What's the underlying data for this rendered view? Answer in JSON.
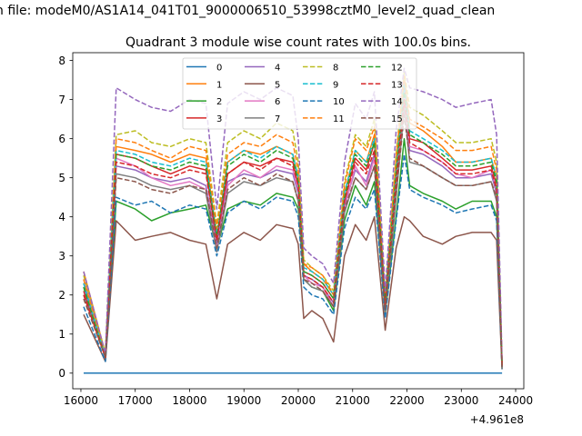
{
  "chart_data": {
    "type": "line",
    "suptitle": "n file: modeM0/AS1A14_041T01_9000006510_53998cztM0_level2_quad_clean",
    "title": "Quadrant 3 module wise count rates with 100.0s bins.",
    "xlabel": "",
    "ylabel": "",
    "x_offset_label": "+4.961e8",
    "xlim": [
      15850,
      24150
    ],
    "ylim": [
      -0.4,
      8.2
    ],
    "xticks": [
      16000,
      17000,
      18000,
      19000,
      20000,
      21000,
      22000,
      23000,
      24000
    ],
    "yticks": [
      0,
      1,
      2,
      3,
      4,
      5,
      6,
      7,
      8
    ],
    "grid": false,
    "legend_position": "upper-center",
    "legend_columns": 4,
    "x": [
      16050,
      16450,
      16650,
      17000,
      17300,
      17650,
      18000,
      18300,
      18500,
      18700,
      19000,
      19300,
      19600,
      19900,
      20000,
      20100,
      20250,
      20450,
      20650,
      20850,
      21050,
      21250,
      21400,
      21600,
      21800,
      21950,
      22050,
      22300,
      22650,
      22900,
      23200,
      23550,
      23650,
      23750
    ],
    "series": [
      {
        "name": "0",
        "color": "#1f77b4",
        "dash": "solid",
        "values": [
          0,
          0,
          0,
          0,
          0,
          0,
          0,
          0,
          0,
          0,
          0,
          0,
          0,
          0,
          0,
          0,
          0,
          0,
          0,
          0,
          0,
          0,
          0,
          0,
          0,
          0,
          0,
          0,
          0,
          0,
          0,
          0,
          0,
          0
        ]
      },
      {
        "name": "1",
        "color": "#ff7f0e",
        "dash": "solid",
        "values": [
          2.6,
          0.5,
          5.8,
          5.7,
          5.6,
          5.4,
          5.6,
          5.5,
          3.5,
          5.4,
          5.7,
          5.6,
          5.8,
          5.6,
          5.0,
          2.8,
          2.6,
          2.4,
          2.0,
          4.6,
          5.7,
          5.4,
          6.1,
          1.8,
          5.3,
          7.5,
          6.4,
          6.2,
          5.8,
          5.4,
          5.4,
          5.5,
          5.0,
          0.2
        ]
      },
      {
        "name": "2",
        "color": "#2ca02c",
        "dash": "solid",
        "values": [
          2.3,
          0.4,
          4.4,
          4.2,
          3.9,
          4.1,
          4.2,
          4.3,
          3.2,
          4.2,
          4.4,
          4.3,
          4.6,
          4.5,
          4.2,
          2.4,
          2.2,
          2.1,
          1.6,
          3.9,
          4.8,
          4.3,
          4.9,
          1.5,
          4.0,
          6.0,
          4.8,
          4.6,
          4.4,
          4.2,
          4.4,
          4.4,
          4.0,
          0.1
        ]
      },
      {
        "name": "3",
        "color": "#d62728",
        "dash": "solid",
        "values": [
          2.1,
          0.4,
          5.6,
          5.5,
          5.3,
          5.1,
          5.3,
          5.2,
          3.4,
          5.1,
          5.4,
          5.3,
          5.5,
          5.4,
          4.8,
          2.6,
          2.5,
          2.3,
          1.9,
          4.4,
          5.5,
          5.2,
          5.9,
          1.7,
          5.0,
          7.3,
          6.0,
          5.9,
          5.5,
          5.2,
          5.2,
          5.3,
          4.8,
          0.2
        ]
      },
      {
        "name": "4",
        "color": "#9467bd",
        "dash": "solid",
        "values": [
          2.2,
          0.4,
          5.3,
          5.2,
          5.0,
          4.9,
          5.0,
          4.8,
          3.3,
          4.9,
          5.1,
          5.0,
          5.2,
          5.1,
          4.6,
          2.5,
          2.4,
          2.2,
          1.8,
          4.3,
          5.2,
          4.9,
          5.6,
          1.7,
          4.8,
          7.0,
          5.7,
          5.6,
          5.3,
          5.0,
          5.0,
          5.1,
          4.6,
          0.2
        ]
      },
      {
        "name": "5",
        "color": "#8c564b",
        "dash": "solid",
        "values": [
          1.5,
          0.3,
          3.9,
          3.4,
          3.5,
          3.6,
          3.4,
          3.3,
          1.9,
          3.3,
          3.6,
          3.4,
          3.8,
          3.7,
          3.3,
          1.4,
          1.6,
          1.4,
          0.8,
          3.0,
          3.8,
          3.4,
          4.0,
          1.1,
          3.2,
          4.0,
          3.9,
          3.5,
          3.3,
          3.5,
          3.6,
          3.6,
          3.4,
          0.1
        ]
      },
      {
        "name": "6",
        "color": "#e377c2",
        "dash": "solid",
        "values": [
          2.4,
          0.4,
          5.5,
          5.3,
          5.0,
          4.8,
          4.9,
          4.7,
          3.2,
          4.8,
          5.2,
          5.0,
          5.3,
          5.2,
          4.7,
          2.5,
          2.3,
          2.2,
          1.7,
          4.2,
          5.3,
          4.8,
          5.5,
          1.6,
          4.6,
          7.2,
          5.8,
          5.7,
          5.4,
          5.1,
          5.0,
          5.2,
          4.7,
          0.2
        ]
      },
      {
        "name": "7",
        "color": "#7f7f7f",
        "dash": "solid",
        "values": [
          2.0,
          0.4,
          5.1,
          5.0,
          4.8,
          4.7,
          4.8,
          4.6,
          3.1,
          4.6,
          4.9,
          4.8,
          5.0,
          4.9,
          4.4,
          2.4,
          2.2,
          2.1,
          1.7,
          4.1,
          5.0,
          4.7,
          5.3,
          1.5,
          4.5,
          6.8,
          5.4,
          5.3,
          5.0,
          4.8,
          4.8,
          4.9,
          4.4,
          0.1
        ]
      },
      {
        "name": "8",
        "color": "#bcbd22",
        "dash": "dashed",
        "values": [
          2.5,
          0.5,
          6.1,
          6.2,
          5.9,
          5.8,
          6.0,
          5.9,
          3.8,
          5.9,
          6.2,
          6.0,
          6.4,
          6.2,
          5.4,
          2.9,
          2.7,
          2.5,
          2.1,
          4.9,
          6.1,
          5.8,
          6.5,
          1.9,
          5.6,
          7.7,
          6.8,
          6.6,
          6.2,
          5.9,
          5.9,
          6.0,
          5.4,
          0.2
        ]
      },
      {
        "name": "9",
        "color": "#17becf",
        "dash": "dashed",
        "values": [
          2.3,
          0.4,
          5.7,
          5.6,
          5.4,
          5.3,
          5.5,
          5.4,
          3.6,
          5.4,
          5.7,
          5.5,
          5.8,
          5.6,
          5.0,
          2.7,
          2.6,
          2.4,
          2.0,
          4.6,
          5.7,
          5.4,
          6.0,
          1.8,
          5.2,
          7.4,
          6.2,
          6.0,
          5.7,
          5.4,
          5.4,
          5.5,
          5.0,
          0.2
        ]
      },
      {
        "name": "10",
        "color": "#1f77b4",
        "dash": "dashed",
        "values": [
          1.7,
          0.3,
          4.5,
          4.3,
          4.4,
          4.1,
          4.3,
          4.2,
          3.0,
          4.1,
          4.4,
          4.2,
          4.5,
          4.4,
          4.0,
          2.2,
          2.0,
          1.9,
          1.5,
          3.7,
          4.5,
          4.2,
          4.7,
          1.4,
          3.9,
          5.6,
          4.7,
          4.5,
          4.3,
          4.1,
          4.2,
          4.3,
          3.9,
          0.1
        ]
      },
      {
        "name": "11",
        "color": "#ff7f0e",
        "dash": "dashed",
        "values": [
          2.4,
          0.5,
          6.0,
          5.9,
          5.7,
          5.5,
          5.8,
          5.7,
          3.7,
          5.6,
          5.9,
          5.8,
          6.1,
          5.9,
          5.2,
          2.8,
          2.7,
          2.5,
          2.0,
          4.8,
          6.0,
          5.7,
          6.3,
          1.9,
          5.5,
          7.6,
          6.5,
          6.3,
          6.0,
          5.7,
          5.7,
          5.8,
          5.2,
          0.2
        ]
      },
      {
        "name": "12",
        "color": "#2ca02c",
        "dash": "dashed",
        "values": [
          2.2,
          0.4,
          5.6,
          5.5,
          5.3,
          5.2,
          5.4,
          5.3,
          3.5,
          5.3,
          5.6,
          5.4,
          5.7,
          5.5,
          4.9,
          2.6,
          2.5,
          2.3,
          1.9,
          4.5,
          5.6,
          5.3,
          5.9,
          1.8,
          5.1,
          7.2,
          6.1,
          5.9,
          5.6,
          5.3,
          5.3,
          5.4,
          4.9,
          0.2
        ]
      },
      {
        "name": "13",
        "color": "#d62728",
        "dash": "dashed",
        "values": [
          2.0,
          0.4,
          5.4,
          5.3,
          5.1,
          5.0,
          5.2,
          5.1,
          3.4,
          5.1,
          5.4,
          5.2,
          5.5,
          5.3,
          4.8,
          2.5,
          2.4,
          2.2,
          1.8,
          4.4,
          5.4,
          5.1,
          5.7,
          1.7,
          4.9,
          7.0,
          5.9,
          5.7,
          5.4,
          5.1,
          5.1,
          5.2,
          4.7,
          0.2
        ]
      },
      {
        "name": "14",
        "color": "#9467bd",
        "dash": "dashed",
        "values": [
          2.6,
          0.5,
          7.3,
          7.0,
          6.8,
          6.7,
          7.0,
          6.9,
          4.2,
          6.9,
          7.2,
          7.0,
          7.3,
          7.1,
          6.0,
          3.2,
          3.0,
          2.8,
          2.3,
          5.4,
          6.9,
          6.5,
          7.2,
          2.1,
          6.2,
          7.8,
          7.3,
          7.2,
          7.0,
          6.8,
          6.9,
          7.0,
          6.1,
          0.3
        ]
      },
      {
        "name": "15",
        "color": "#8c564b",
        "dash": "dashed",
        "values": [
          1.9,
          0.4,
          5.0,
          4.9,
          4.7,
          4.6,
          4.8,
          4.7,
          3.2,
          4.7,
          5.0,
          4.8,
          5.1,
          4.9,
          4.4,
          2.4,
          2.3,
          2.1,
          1.7,
          4.2,
          5.0,
          4.7,
          5.3,
          1.6,
          4.6,
          6.6,
          5.5,
          5.3,
          5.0,
          4.8,
          4.8,
          4.9,
          4.5,
          0.1
        ]
      }
    ]
  }
}
